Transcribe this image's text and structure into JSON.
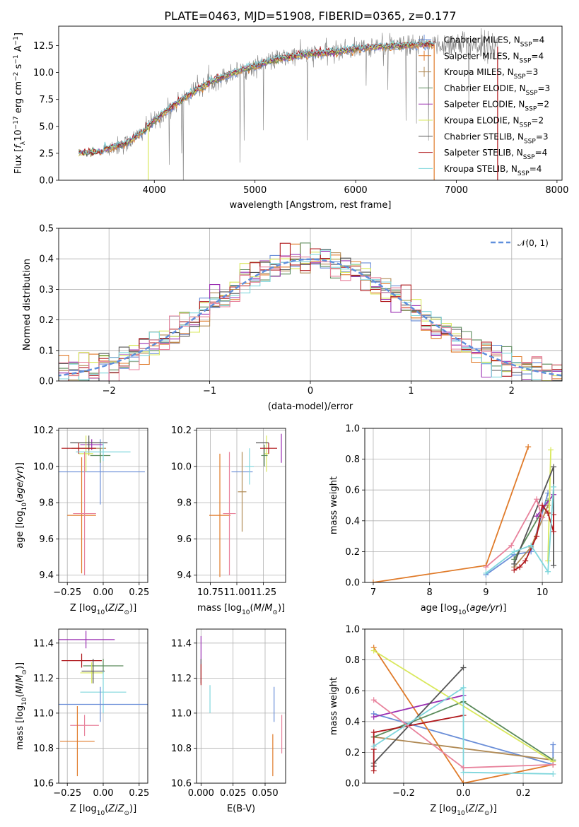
{
  "figure_title": "PLATE=0463, MJD=51908, FIBERID=0365, z=0.177",
  "palette": {
    "Chabrier MILES": "#6a8ed8",
    "Salpeter MILES": "#e07b2a",
    "Kroupa MILES": "#b08a55",
    "Chabrier ELODIE": "#5a8a5a",
    "Salpeter ELODIE": "#9b30b3",
    "Kroupa ELODIE": "#d9e85c",
    "Chabrier STELIB": "#555555",
    "Salpeter STELIB": "#b0181c",
    "Kroupa STELIB": "#7fd6dc",
    "hist_pink": "#e8829c",
    "gauss": "#5f8fdc"
  },
  "chart_data": [
    {
      "id": "spectrum",
      "type": "line",
      "title": "PLATE=0463, MJD=51908, FIBERID=0365, z=0.177",
      "xlabel": "wavelength [Angstrom, rest frame]",
      "ylabel": "Flux [f_λ 10^-17 erg cm^-2 s^-1 A^-1]",
      "xlim": [
        3050,
        8050
      ],
      "ylim": [
        0,
        14.3
      ],
      "xticks": [
        4000,
        5000,
        6000,
        7000,
        8000
      ],
      "yticks": [
        0.0,
        2.5,
        5.0,
        7.5,
        10.0,
        12.5
      ],
      "legend_position": "right",
      "legend": [
        {
          "label": "Chabrier MILES, N_SSP=4",
          "style": "marker"
        },
        {
          "label": "Salpeter MILES, N_SSP=4",
          "style": "marker"
        },
        {
          "label": "Kroupa MILES, N_SSP=3",
          "style": "marker"
        },
        {
          "label": "Chabrier ELODIE, N_SSP=3",
          "style": "line"
        },
        {
          "label": "Salpeter ELODIE, N_SSP=2",
          "style": "line"
        },
        {
          "label": "Kroupa ELODIE, N_SSP=2",
          "style": "line"
        },
        {
          "label": "Chabrier STELIB, N_SSP=3",
          "style": "line"
        },
        {
          "label": "Salpeter STELIB, N_SSP=4",
          "style": "line"
        },
        {
          "label": "Kroupa STELIB, N_SSP=4",
          "style": "line"
        }
      ],
      "continuum": {
        "x": [
          3260,
          3500,
          3700,
          3800,
          3900,
          4000,
          4200,
          4400,
          4600,
          4800,
          5000,
          5200,
          5500,
          5800,
          6000,
          6200,
          6500,
          6800,
          7000,
          7200,
          7420
        ],
        "y": [
          2.5,
          2.9,
          3.3,
          3.9,
          4.6,
          5.5,
          7.0,
          8.3,
          9.3,
          10.0,
          10.6,
          11.2,
          11.7,
          11.9,
          12.2,
          12.4,
          12.5,
          12.6,
          12.7,
          12.6,
          12.4
        ]
      },
      "models_x_range": [
        3250,
        6780
      ],
      "data_x_range": [
        3500,
        7420
      ]
    },
    {
      "id": "residual-hist",
      "type": "histogram",
      "xlabel": "(data-model)/error",
      "ylabel": "Normed distribution",
      "xlim": [
        -2.5,
        2.5
      ],
      "ylim": [
        0,
        0.5
      ],
      "xticks": [
        -2,
        -1,
        0,
        1,
        2
      ],
      "yticks": [
        0.0,
        0.1,
        0.2,
        0.3,
        0.4,
        0.5
      ],
      "bin_width": 0.1,
      "legend": [
        {
          "label": "𝒩(0, 1)",
          "style": "dashed"
        }
      ],
      "legend_position": "top-right"
    },
    {
      "id": "age-vs-Z",
      "type": "errorbar",
      "xlabel": "Z [log10(Z/Z⊙)]",
      "ylabel": "age [log10(age/yr)]",
      "xlim": [
        -0.31,
        0.31
      ],
      "ylim": [
        9.36,
        10.21
      ],
      "xticks": [
        -0.25,
        0.0,
        0.25
      ],
      "yticks": [
        9.4,
        9.6,
        9.8,
        10.0,
        10.2
      ],
      "points": [
        {
          "model": "Chabrier MILES",
          "x": -0.02,
          "xerr": 0.31,
          "y": 9.97,
          "yerr": 0.18
        },
        {
          "model": "Salpeter MILES",
          "x": -0.15,
          "xerr": 0.1,
          "y": 9.73,
          "yerr": 0.32
        },
        {
          "model": "Kroupa MILES",
          "x": -0.1,
          "xerr": 0.12,
          "y": 10.1,
          "yerr": 0.04
        },
        {
          "model": "Chabrier ELODIE",
          "x": -0.02,
          "xerr": 0.07,
          "y": 10.06,
          "yerr": 0.04
        },
        {
          "model": "Salpeter ELODIE",
          "x": -0.08,
          "xerr": 0.08,
          "y": 10.12,
          "yerr": 0.03
        },
        {
          "model": "Kroupa ELODIE",
          "x": -0.12,
          "xerr": 0.05,
          "y": 10.07,
          "yerr": 0.1
        },
        {
          "model": "Chabrier STELIB",
          "x": -0.1,
          "xerr": 0.13,
          "y": 10.13,
          "yerr": 0.04
        },
        {
          "model": "Salpeter STELIB",
          "x": -0.17,
          "xerr": 0.12,
          "y": 10.1,
          "yerr": 0.03
        },
        {
          "model": "Kroupa STELIB",
          "x": 0.0,
          "xerr": 0.19,
          "y": 10.08,
          "yerr": 0.05
        },
        {
          "model": "hist_pink",
          "x": -0.13,
          "xerr": 0.08,
          "y": 9.74,
          "yerr": 0.34
        }
      ]
    },
    {
      "id": "age-vs-mass",
      "type": "errorbar",
      "xlabel": "mass [log10(M/M⊙)]",
      "ylabel": "",
      "xlim": [
        10.62,
        11.46
      ],
      "ylim": [
        9.36,
        10.21
      ],
      "xticks": [
        10.75,
        11.0,
        11.25
      ],
      "yticks": [
        9.4,
        9.6,
        9.8,
        10.0,
        10.2
      ],
      "points": [
        {
          "model": "Chabrier MILES",
          "x": 11.05,
          "xerr": 0.1,
          "y": 9.97,
          "yerr": 0.0
        },
        {
          "model": "Kroupa STELIB",
          "x": 11.12,
          "xerr": 0.04,
          "y": 10.0,
          "yerr": 0.1
        },
        {
          "model": "Kroupa MILES",
          "x": 11.05,
          "xerr": 0.04,
          "y": 9.86,
          "yerr": 0.22
        },
        {
          "model": "Salpeter MILES",
          "x": 10.84,
          "xerr": 0.1,
          "y": 9.73,
          "yerr": 0.34
        },
        {
          "model": "hist_pink",
          "x": 10.93,
          "xerr": 0.06,
          "y": 9.74,
          "yerr": 0.34
        },
        {
          "model": "Kroupa ELODIE",
          "x": 11.28,
          "xerr": 0.02,
          "y": 10.07,
          "yerr": 0.1
        },
        {
          "model": "Chabrier ELODIE",
          "x": 11.26,
          "xerr": 0.03,
          "y": 10.06,
          "yerr": 0.06
        },
        {
          "model": "Chabrier STELIB",
          "x": 11.24,
          "xerr": 0.06,
          "y": 10.13,
          "yerr": 0.0
        },
        {
          "model": "Salpeter STELIB",
          "x": 11.3,
          "xerr": 0.08,
          "y": 10.1,
          "yerr": 0.03
        },
        {
          "model": "Salpeter ELODIE",
          "x": 11.42,
          "xerr": 0.0,
          "y": 10.1,
          "yerr": 0.08
        }
      ]
    },
    {
      "id": "mass-weight-vs-age",
      "type": "line",
      "xlabel": "age [log10(age/yr)]",
      "ylabel": "mass weight",
      "xlim": [
        6.85,
        10.35
      ],
      "ylim": [
        0,
        1.0
      ],
      "xticks": [
        7,
        8,
        9,
        10
      ],
      "yticks": [
        0.0,
        0.2,
        0.4,
        0.6,
        0.8,
        1.0
      ],
      "series": [
        {
          "model": "Chabrier MILES",
          "x": [
            9.0,
            9.5,
            9.8,
            10.1
          ],
          "y": [
            0.05,
            0.18,
            0.2,
            0.58
          ]
        },
        {
          "model": "Salpeter MILES",
          "x": [
            7.0,
            9.0,
            9.75
          ],
          "y": [
            0.0,
            0.11,
            0.88
          ]
        },
        {
          "model": "Kroupa MILES",
          "x": [
            9.5,
            9.8,
            10.1
          ],
          "y": [
            0.1,
            0.23,
            0.5
          ]
        },
        {
          "model": "Chabrier ELODIE",
          "x": [
            9.5,
            10.1
          ],
          "y": [
            0.15,
            0.53
          ]
        },
        {
          "model": "Salpeter ELODIE",
          "x": [
            9.9,
            10.2
          ],
          "y": [
            0.43,
            0.57
          ]
        },
        {
          "model": "Kroupa ELODIE",
          "x": [
            10.1,
            10.15
          ],
          "y": [
            0.14,
            0.86
          ]
        },
        {
          "model": "Chabrier STELIB",
          "x": [
            9.5,
            10.2,
            10.2
          ],
          "y": [
            0.12,
            0.75,
            0.11
          ]
        },
        {
          "model": "Salpeter STELIB",
          "x": [
            9.5,
            9.6,
            9.7,
            9.9,
            10.0,
            10.1,
            10.2,
            10.2
          ],
          "y": [
            0.08,
            0.1,
            0.14,
            0.3,
            0.5,
            0.45,
            0.33,
            0.44
          ]
        },
        {
          "model": "Kroupa STELIB",
          "x": [
            9.0,
            9.5,
            9.8,
            10.1,
            10.2
          ],
          "y": [
            0.06,
            0.2,
            0.24,
            0.07,
            0.62
          ]
        },
        {
          "model": "hist_pink",
          "x": [
            9.0,
            9.45,
            9.9,
            10.0
          ],
          "y": [
            0.1,
            0.24,
            0.54,
            0.42
          ]
        }
      ]
    },
    {
      "id": "mass-vs-Z",
      "type": "errorbar",
      "xlabel": "Z [log10(Z/Z⊙)]",
      "ylabel": "mass [log10(M/M⊙)]",
      "xlim": [
        -0.31,
        0.31
      ],
      "ylim": [
        10.6,
        11.48
      ],
      "xticks": [
        -0.25,
        0.0,
        0.25
      ],
      "yticks": [
        10.6,
        10.8,
        11.0,
        11.2,
        11.4
      ],
      "points": [
        {
          "model": "Salpeter ELODIE",
          "x": -0.12,
          "xerr": 0.2,
          "y": 11.42,
          "yerr": 0.05
        },
        {
          "model": "Salpeter STELIB",
          "x": -0.15,
          "xerr": 0.14,
          "y": 11.3,
          "yerr": 0.04
        },
        {
          "model": "Chabrier ELODIE",
          "x": 0.0,
          "xerr": 0.14,
          "y": 11.27,
          "yerr": 0.04
        },
        {
          "model": "Kroupa ELODIE",
          "x": -0.08,
          "xerr": 0.08,
          "y": 11.23,
          "yerr": 0.06
        },
        {
          "model": "Chabrier STELIB",
          "x": -0.07,
          "xerr": 0.08,
          "y": 11.24,
          "yerr": 0.07
        },
        {
          "model": "Kroupa STELIB",
          "x": 0.0,
          "xerr": 0.16,
          "y": 11.12,
          "yerr": 0.12
        },
        {
          "model": "Chabrier MILES",
          "x": -0.02,
          "xerr": 0.33,
          "y": 11.05,
          "yerr": 0.1
        },
        {
          "model": "hist_pink",
          "x": -0.13,
          "xerr": 0.1,
          "y": 10.93,
          "yerr": 0.06
        },
        {
          "model": "Salpeter MILES",
          "x": -0.18,
          "xerr": 0.12,
          "y": 10.84,
          "yerr": 0.2
        }
      ]
    },
    {
      "id": "mass-vs-ebv",
      "type": "errorbar",
      "xlabel": "E(B-V)",
      "ylabel": "",
      "xlim": [
        -0.0035,
        0.066
      ],
      "ylim": [
        10.6,
        11.48
      ],
      "xticks": [
        0.0,
        0.025,
        0.05
      ],
      "yticks": [
        10.6,
        10.8,
        11.0,
        11.2,
        11.4
      ],
      "points": [
        {
          "model": "Salpeter ELODIE",
          "x": 0.0,
          "xerr": 0.0,
          "y": 11.36,
          "yerr": 0.08
        },
        {
          "model": "Chabrier STELIB",
          "x": 0.0,
          "xerr": 0.0,
          "y": 11.24,
          "yerr": 0.07
        },
        {
          "model": "Salpeter STELIB",
          "x": 0.0,
          "xerr": 0.0,
          "y": 11.22,
          "yerr": 0.06
        },
        {
          "model": "Kroupa STELIB",
          "x": 0.007,
          "xerr": 0.0,
          "y": 11.08,
          "yerr": 0.08
        },
        {
          "model": "Chabrier MILES",
          "x": 0.057,
          "xerr": 0.0,
          "y": 11.05,
          "yerr": 0.1
        },
        {
          "model": "Salpeter MILES",
          "x": 0.056,
          "xerr": 0.0,
          "y": 10.76,
          "yerr": 0.12
        },
        {
          "model": "hist_pink",
          "x": 0.063,
          "xerr": 0.0,
          "y": 10.88,
          "yerr": 0.11
        }
      ]
    },
    {
      "id": "mass-weight-vs-Z",
      "type": "line",
      "xlabel": "Z [log10(Z/Z⊙)]",
      "ylabel": "mass weight",
      "xlim": [
        -0.33,
        0.33
      ],
      "ylim": [
        0,
        1.0
      ],
      "xticks": [
        -0.2,
        0.0,
        0.2
      ],
      "yticks": [
        0.0,
        0.2,
        0.4,
        0.6,
        0.8,
        1.0
      ],
      "series": [
        {
          "model": "Chabrier MILES",
          "x": [
            -0.3,
            0.3,
            0.3
          ],
          "y": [
            0.45,
            0.12,
            0.25
          ]
        },
        {
          "model": "Salpeter MILES",
          "x": [
            -0.3,
            0.0,
            0.3
          ],
          "y": [
            0.88,
            0.0,
            0.12
          ]
        },
        {
          "model": "Kroupa MILES",
          "x": [
            -0.3,
            0.3
          ],
          "y": [
            0.3,
            0.15
          ]
        },
        {
          "model": "Chabrier ELODIE",
          "x": [
            -0.3,
            0.0,
            0.3
          ],
          "y": [
            0.3,
            0.53,
            0.15
          ]
        },
        {
          "model": "Salpeter ELODIE",
          "x": [
            -0.3,
            0.0
          ],
          "y": [
            0.43,
            0.57
          ]
        },
        {
          "model": "Kroupa ELODIE",
          "x": [
            -0.3,
            0.3
          ],
          "y": [
            0.86,
            0.14
          ]
        },
        {
          "model": "Chabrier STELIB",
          "x": [
            -0.3,
            -0.3,
            0.0
          ],
          "y": [
            0.11,
            0.13,
            0.75
          ]
        },
        {
          "model": "Salpeter STELIB",
          "x": [
            -0.3,
            -0.3,
            -0.3,
            0.0
          ],
          "y": [
            0.08,
            0.22,
            0.33,
            0.44
          ]
        },
        {
          "model": "Kroupa STELIB",
          "x": [
            -0.3,
            0.0,
            0.0,
            0.3
          ],
          "y": [
            0.24,
            0.62,
            0.07,
            0.06
          ]
        },
        {
          "model": "hist_pink",
          "x": [
            -0.3,
            0.0,
            0.3
          ],
          "y": [
            0.54,
            0.1,
            0.12
          ]
        }
      ]
    }
  ]
}
